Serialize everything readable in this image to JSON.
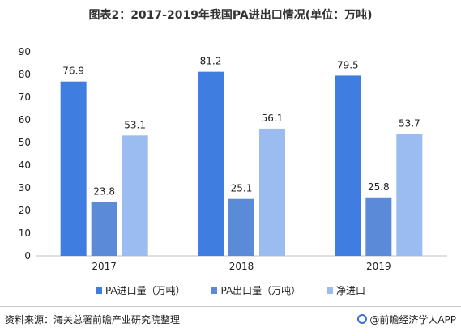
{
  "title": "图表2：2017-2019年我国PA进出口情况(单位：万吨)",
  "chart_data": {
    "type": "bar",
    "title": "图表2：2017-2019年我国PA进出口情况(单位：万吨)",
    "categories": [
      "2017",
      "2018",
      "2019"
    ],
    "series": [
      {
        "name": "PA进口量（万吨）",
        "values": [
          76.9,
          81.2,
          79.5
        ],
        "color": "#3f7ee0"
      },
      {
        "name": "PA出口量（万吨）",
        "values": [
          23.8,
          25.1,
          25.8
        ],
        "color": "#5a8ad8"
      },
      {
        "name": "净进口",
        "values": [
          53.1,
          56.1,
          53.7
        ],
        "color": "#9bbcf0"
      }
    ],
    "data_labels": [
      [
        "76.9",
        "81.2",
        "79.5"
      ],
      [
        "23.8",
        "25.1",
        "25.8"
      ],
      [
        "53.1",
        "56.1",
        "53.7"
      ]
    ],
    "ylim": [
      0,
      90
    ],
    "yticks": [
      "0",
      "10",
      "20",
      "30",
      "40",
      "50",
      "60",
      "70",
      "80",
      "90"
    ],
    "xlabel": "",
    "ylabel": "",
    "grid": false,
    "legend_position": "bottom"
  },
  "legend": {
    "items": [
      {
        "label": "PA进口量（万吨）",
        "color": "#3f7ee0"
      },
      {
        "label": "PA出口量（万吨）",
        "color": "#5a8ad8"
      },
      {
        "label": "净进口",
        "color": "#9bbcf0"
      }
    ]
  },
  "footer": {
    "source": "资料来源：海关总署前瞻产业研究院整理",
    "credit": "@前瞻经济学人APP",
    "credit_icon": "qianzhan-logo-icon"
  }
}
